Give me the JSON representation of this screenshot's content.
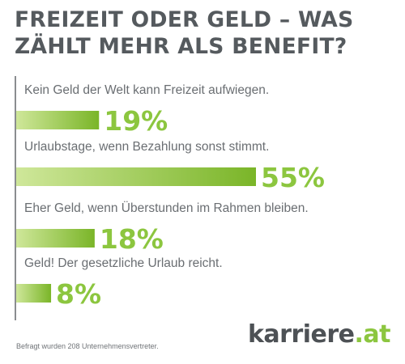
{
  "title": "FREIZEIT ODER GELD – WAS ZÄHLT MEHR ALS BENEFIT?",
  "footnote": "Befragt wurden 208 Unternehmensvertreter.",
  "brand": {
    "name": "karriere",
    "tld": ".at"
  },
  "colors": {
    "bar_light": "#cfe79a",
    "bar_dark": "#7ab528",
    "value_text": "#8cc63f",
    "label_text": "#6a6e72",
    "title_text": "#555a5e"
  },
  "chart_data": {
    "type": "bar",
    "orientation": "horizontal",
    "title": "FREIZEIT ODER GELD – WAS ZÄHLT MEHR ALS BENEFIT?",
    "unit": "%",
    "xlim": [
      0,
      55
    ],
    "categories": [
      "Kein Geld der Welt kann Freizeit aufwiegen.",
      "Urlaubstage, wenn Bezahlung sonst stimmt.",
      "Eher Geld, wenn Überstunden im Rahmen bleiben.",
      "Geld! Der gesetzliche Urlaub reicht."
    ],
    "values": [
      19,
      55,
      18,
      8
    ],
    "value_labels": [
      "19%",
      "55%",
      "18%",
      "8%"
    ]
  }
}
